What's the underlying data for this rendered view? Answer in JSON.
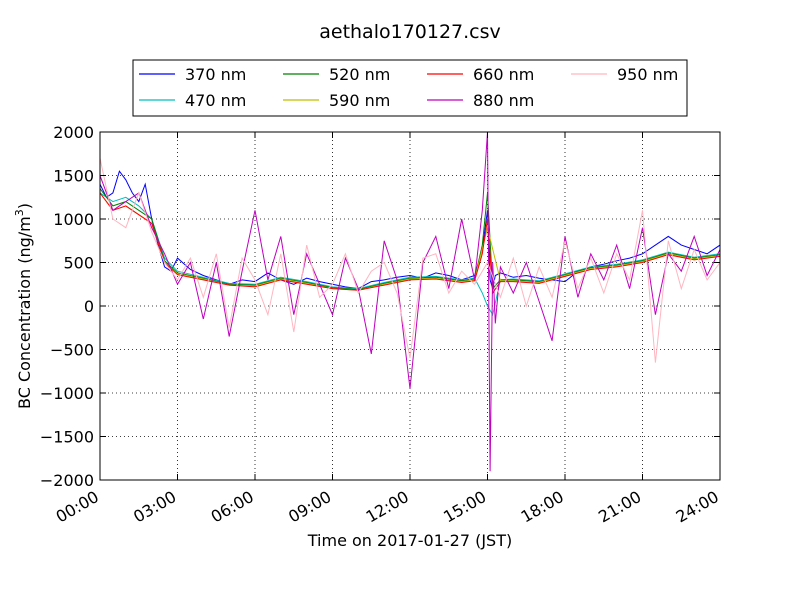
{
  "chart_data": {
    "type": "line",
    "title": "aethalo170127.csv",
    "xlabel": "Time on 2017-01-27 (JST)",
    "ylabel": "BC Concentration (ng/m",
    "ylabel_superscript": "3",
    "ylabel_close": ")",
    "x_unit": "hours",
    "xlim": [
      0,
      24
    ],
    "ylim": [
      -2000,
      2000
    ],
    "x_ticks": [
      0,
      3,
      6,
      9,
      12,
      15,
      18,
      21,
      24
    ],
    "x_tick_labels": [
      "00:00",
      "03:00",
      "06:00",
      "09:00",
      "12:00",
      "15:00",
      "18:00",
      "21:00",
      "24:00"
    ],
    "y_ticks": [
      2000,
      1500,
      1000,
      500,
      0,
      -500,
      -1000,
      -1500,
      -2000
    ],
    "y_tick_labels": [
      "2000",
      "1500",
      "1000",
      "500",
      "0",
      "−500",
      "−1000",
      "−1500",
      "−2000"
    ],
    "grid": true,
    "legend_position": "top, above plot",
    "series": [
      {
        "name": "370 nm",
        "color": "#0000ff",
        "x": [
          0,
          0.25,
          0.5,
          0.75,
          1,
          1.25,
          1.5,
          1.75,
          2,
          2.25,
          2.5,
          2.75,
          3,
          3.5,
          4,
          4.5,
          5,
          5.5,
          6,
          6.5,
          7,
          7.5,
          8,
          8.5,
          9,
          9.5,
          10,
          10.5,
          11,
          11.5,
          12,
          12.5,
          13,
          13.5,
          14,
          14.5,
          14.8,
          15,
          15.1,
          15.2,
          15.3,
          15.5,
          16,
          16.5,
          17,
          17.5,
          18,
          18.5,
          19,
          19.5,
          20,
          20.5,
          21,
          21.5,
          22,
          22.5,
          23,
          23.5,
          24
        ],
        "y": [
          1400,
          1250,
          1300,
          1550,
          1450,
          1300,
          1200,
          1400,
          1000,
          700,
          450,
          400,
          550,
          420,
          350,
          300,
          250,
          300,
          280,
          380,
          300,
          250,
          320,
          280,
          250,
          220,
          200,
          280,
          300,
          330,
          350,
          320,
          380,
          350,
          300,
          350,
          650,
          1100,
          300,
          200,
          350,
          380,
          330,
          350,
          320,
          300,
          280,
          400,
          450,
          480,
          520,
          550,
          600,
          700,
          800,
          700,
          650,
          600,
          700
        ]
      },
      {
        "name": "470 nm",
        "color": "#00bfbf",
        "x": [
          0,
          0.5,
          1,
          1.5,
          2,
          2.5,
          3,
          4,
          5,
          6,
          7,
          8,
          9,
          10,
          11,
          12,
          13,
          14,
          14.5,
          14.8,
          15,
          15.2,
          15.5,
          16,
          17,
          18,
          19,
          20,
          21,
          22,
          23,
          24
        ],
        "y": [
          1300,
          1200,
          1250,
          1150,
          1000,
          550,
          400,
          330,
          260,
          250,
          330,
          280,
          220,
          200,
          270,
          330,
          340,
          300,
          320,
          150,
          0,
          -100,
          300,
          310,
          290,
          370,
          450,
          480,
          530,
          620,
          560,
          600
        ]
      },
      {
        "name": "520 nm",
        "color": "#008000",
        "x": [
          0,
          0.5,
          1,
          1.5,
          2,
          2.5,
          3,
          4,
          5,
          6,
          7,
          8,
          9,
          10,
          11,
          12,
          13,
          14,
          14.5,
          14.8,
          15,
          15.2,
          15.5,
          16,
          17,
          18,
          19,
          20,
          21,
          22,
          23,
          24
        ],
        "y": [
          1350,
          1150,
          1200,
          1100,
          1000,
          520,
          380,
          320,
          250,
          240,
          320,
          270,
          210,
          190,
          260,
          320,
          330,
          290,
          310,
          700,
          1300,
          200,
          300,
          300,
          280,
          360,
          440,
          470,
          520,
          610,
          550,
          590
        ]
      },
      {
        "name": "590 nm",
        "color": "#bfbf00",
        "x": [
          0,
          0.5,
          1,
          1.5,
          2,
          2.5,
          3,
          4,
          5,
          6,
          7,
          8,
          9,
          10,
          11,
          12,
          13,
          14,
          14.5,
          15,
          15.5,
          16,
          17,
          18,
          19,
          20,
          21,
          22,
          23,
          24
        ],
        "y": [
          1300,
          1100,
          1150,
          1050,
          950,
          500,
          370,
          310,
          240,
          230,
          310,
          260,
          200,
          180,
          250,
          310,
          320,
          280,
          300,
          900,
          290,
          290,
          270,
          350,
          430,
          460,
          510,
          600,
          540,
          580
        ]
      },
      {
        "name": "660 nm",
        "color": "#ff0000",
        "x": [
          0,
          0.5,
          1,
          1.5,
          2,
          2.5,
          3,
          4,
          5,
          6,
          7,
          8,
          9,
          10,
          11,
          12,
          13,
          14,
          14.5,
          14.8,
          15,
          15.2,
          15.5,
          16,
          17,
          18,
          19,
          20,
          21,
          22,
          23,
          24
        ],
        "y": [
          1300,
          1100,
          1150,
          1050,
          950,
          500,
          360,
          300,
          240,
          220,
          300,
          250,
          200,
          180,
          240,
          300,
          310,
          270,
          290,
          600,
          1000,
          150,
          280,
          280,
          260,
          340,
          420,
          450,
          500,
          590,
          530,
          570
        ]
      },
      {
        "name": "880 nm",
        "color": "#bf00bf",
        "x": [
          0,
          0.5,
          1,
          1.5,
          2,
          2.5,
          3,
          3.5,
          4,
          4.5,
          5,
          5.5,
          6,
          6.5,
          7,
          7.5,
          8,
          8.5,
          9,
          9.5,
          10,
          10.5,
          11,
          11.5,
          12,
          12.5,
          13,
          13.5,
          14,
          14.5,
          14.8,
          15,
          15.1,
          15.2,
          15.3,
          15.5,
          16,
          16.5,
          17,
          17.5,
          18,
          18.5,
          19,
          19.5,
          20,
          20.5,
          21,
          21.5,
          22,
          22.5,
          23,
          23.5,
          24
        ],
        "y": [
          1500,
          1100,
          1200,
          1300,
          900,
          600,
          250,
          500,
          -150,
          500,
          -350,
          400,
          1100,
          300,
          800,
          -100,
          600,
          250,
          -100,
          550,
          200,
          -550,
          750,
          300,
          -950,
          500,
          800,
          200,
          1000,
          300,
          1100,
          2000,
          -1900,
          500,
          -200,
          450,
          150,
          500,
          50,
          -400,
          800,
          100,
          600,
          300,
          700,
          200,
          900,
          -100,
          600,
          400,
          800,
          350,
          650
        ]
      },
      {
        "name": "950 nm",
        "color": "#ffb6c1",
        "x": [
          0,
          0.5,
          1,
          1.5,
          2,
          2.5,
          3,
          3.5,
          4,
          4.5,
          5,
          5.5,
          6,
          6.5,
          7,
          7.5,
          8,
          8.5,
          9,
          9.5,
          10,
          10.5,
          11,
          11.5,
          12,
          12.5,
          13,
          13.5,
          14,
          14.5,
          15,
          15.5,
          16,
          16.5,
          17,
          17.5,
          18,
          18.5,
          19,
          19.5,
          20,
          20.5,
          21,
          21.5,
          22,
          22.5,
          23,
          23.5,
          24
        ],
        "y": [
          1700,
          1000,
          900,
          1300,
          850,
          500,
          300,
          550,
          100,
          600,
          -250,
          550,
          300,
          -100,
          600,
          -300,
          700,
          100,
          250,
          600,
          150,
          400,
          500,
          150,
          -600,
          550,
          600,
          150,
          400,
          250,
          500,
          100,
          550,
          0,
          450,
          100,
          750,
          200,
          550,
          150,
          600,
          300,
          1100,
          -650,
          750,
          200,
          650,
          300,
          500
        ]
      }
    ]
  }
}
